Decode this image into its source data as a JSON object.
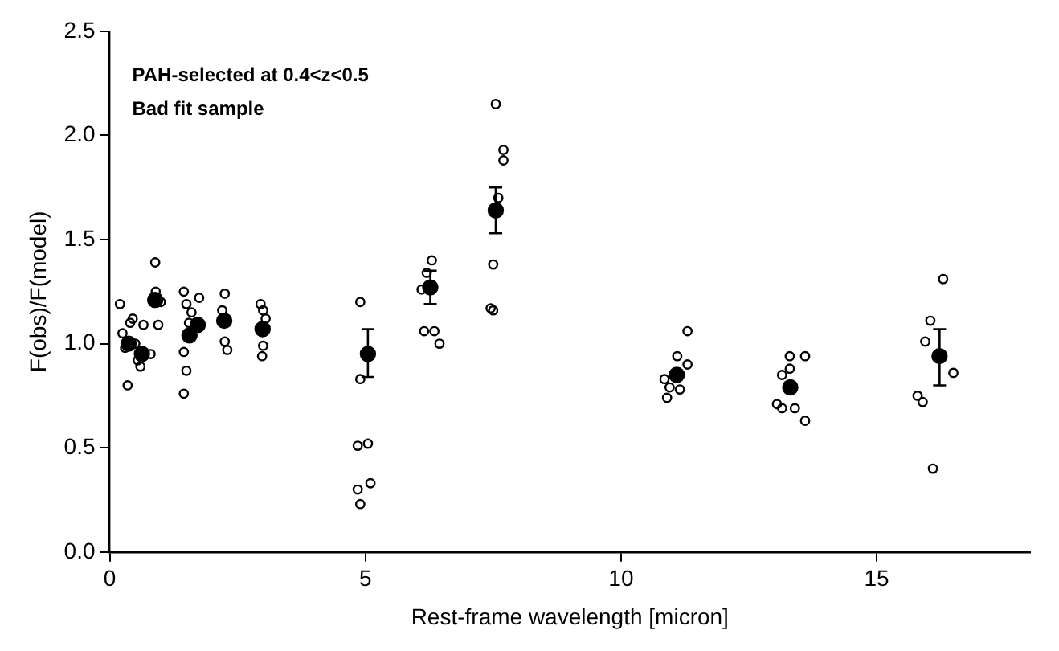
{
  "chart_data": {
    "type": "scatter",
    "xlabel": "Rest-frame wavelength [micron]",
    "ylabel": "F(obs)/F(model)",
    "annotations": [
      "PAH-selected at 0.4<z<0.5",
      "Bad fit sample"
    ],
    "xlim": [
      0,
      18
    ],
    "xticks": [
      0,
      5,
      10,
      15
    ],
    "ylim": [
      0,
      2.5
    ],
    "yticks": [
      {
        "value": 0,
        "label": "0.0"
      },
      0.5,
      {
        "value": 1,
        "label": "1.0"
      },
      1.5,
      {
        "value": 2,
        "label": "2.0"
      },
      2.5
    ],
    "grid": false,
    "legend": false,
    "marker": "circle",
    "series": [
      {
        "type": "scatter",
        "color": "#000000",
        "x": [
          0.2,
          0.25,
          0.3,
          0.35,
          0.4,
          0.45,
          0.66,
          0.55,
          0.6,
          0.8,
          0.5,
          0.89,
          0.9,
          0.95,
          1.0,
          1.45,
          1.5,
          1.45,
          1.5,
          1.45,
          1.6,
          1.75,
          1.55,
          2.25,
          2.2,
          2.25,
          2.3,
          2.95,
          3.0,
          3.05,
          3.0,
          2.98,
          4.9,
          4.85,
          5.05,
          4.85,
          5.1,
          4.9,
          4.9,
          6.3,
          6.2,
          6.1,
          6.15,
          6.35,
          6.45,
          7.55,
          7.7,
          7.7,
          7.5,
          7.45,
          7.5,
          7.6,
          11.3,
          11.1,
          11.3,
          10.85,
          10.9,
          11.15,
          10.95,
          13.3,
          13.6,
          13.15,
          13.3,
          13.05,
          13.15,
          13.4,
          13.6,
          16.3,
          16.05,
          15.95,
          16.5,
          15.8,
          15.9,
          16.1
        ],
        "values": [
          1.19,
          1.05,
          0.98,
          0.8,
          1.1,
          1.12,
          1.09,
          0.92,
          0.89,
          0.95,
          1.0,
          1.39,
          1.25,
          1.09,
          1.2,
          1.25,
          1.19,
          0.96,
          0.87,
          0.76,
          1.15,
          1.22,
          1.1,
          1.24,
          1.16,
          1.01,
          0.97,
          1.19,
          1.16,
          1.12,
          0.99,
          0.94,
          1.2,
          0.51,
          0.52,
          0.3,
          0.33,
          0.23,
          0.83,
          1.4,
          1.34,
          1.26,
          1.06,
          1.06,
          1.0,
          2.15,
          1.93,
          1.88,
          1.38,
          1.17,
          1.16,
          1.7,
          1.06,
          0.94,
          0.9,
          0.83,
          0.74,
          0.78,
          0.79,
          0.94,
          0.94,
          0.85,
          0.88,
          0.71,
          0.69,
          0.69,
          0.63,
          1.31,
          1.11,
          1.01,
          0.86,
          0.75,
          0.72,
          0.4
        ]
      },
      {
        "type": "scatter",
        "color": "#000000",
        "x": [
          0.37,
          0.63,
          0.89,
          1.56,
          1.72,
          2.24,
          2.99,
          5.05,
          6.27,
          7.55,
          11.09,
          13.31,
          16.23
        ],
        "values": [
          1.0,
          0.95,
          1.21,
          1.04,
          1.09,
          1.11,
          1.07,
          0.95,
          1.27,
          1.64,
          0.85,
          0.79,
          0.94
        ],
        "errors": [
          null,
          null,
          null,
          null,
          null,
          null,
          null,
          [
            0.84,
            1.07
          ],
          [
            1.19,
            1.35
          ],
          [
            1.53,
            1.75
          ],
          null,
          null,
          [
            0.8,
            1.07
          ]
        ]
      }
    ]
  }
}
